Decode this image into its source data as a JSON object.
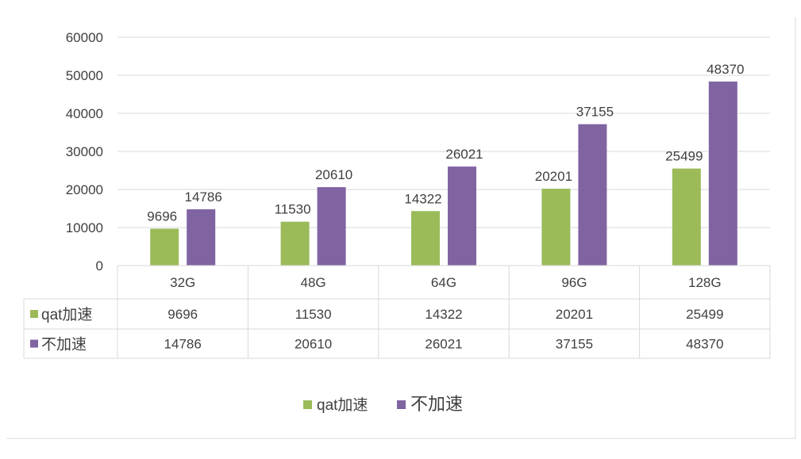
{
  "chart_data": {
    "type": "bar",
    "title": "",
    "xlabel": "",
    "ylabel": "",
    "categories": [
      "32G",
      "48G",
      "64G",
      "96G",
      "128G"
    ],
    "series": [
      {
        "name": "qat加速",
        "color": "#9BBB59",
        "values": [
          9696,
          11530,
          14322,
          20201,
          25499
        ]
      },
      {
        "name": "不加速",
        "color": "#8064A2",
        "values": [
          14786,
          20610,
          26021,
          37155,
          48370
        ]
      }
    ],
    "ylim": [
      0,
      60000
    ],
    "yticks": [
      "0",
      "10000",
      "20000",
      "30000",
      "40000",
      "50000",
      "60000"
    ],
    "grid": true,
    "data_labels": true,
    "data_table": true,
    "legend": "bottom",
    "colors": {
      "gridline": "#D9D9D9",
      "table_border": "#D9D9D9",
      "text": "#404040"
    }
  }
}
